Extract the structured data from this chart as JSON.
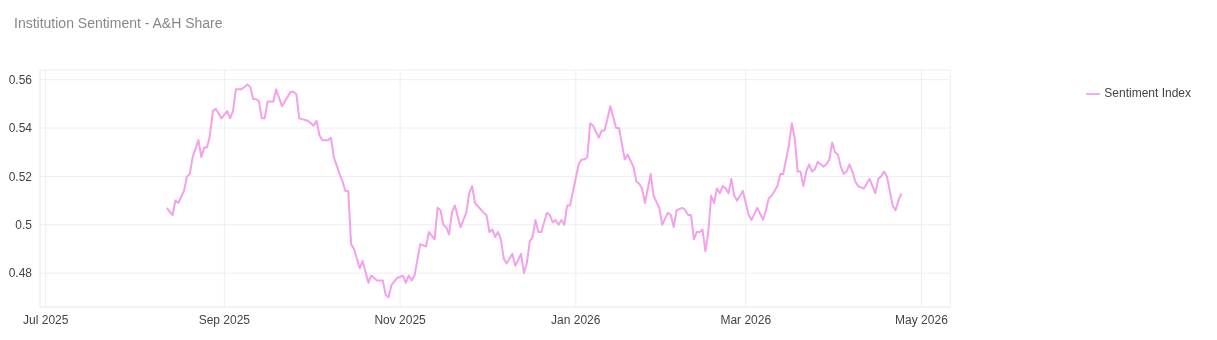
{
  "chart_data": {
    "type": "line",
    "title": "Institution Sentiment - A&H Share",
    "x": [
      "2025-08-12",
      "2025-08-14",
      "2025-08-15",
      "2025-08-16",
      "2025-08-18",
      "2025-08-19",
      "2025-08-20",
      "2025-08-21",
      "2025-08-23",
      "2025-08-24",
      "2025-08-25",
      "2025-08-26",
      "2025-08-27",
      "2025-08-28",
      "2025-08-29",
      "2025-08-31",
      "2025-09-02",
      "2025-09-03",
      "2025-09-04",
      "2025-09-05",
      "2025-09-07",
      "2025-09-09",
      "2025-09-10",
      "2025-09-11",
      "2025-09-12",
      "2025-09-13",
      "2025-09-14",
      "2025-09-15",
      "2025-09-16",
      "2025-09-18",
      "2025-09-19",
      "2025-09-21",
      "2025-09-22",
      "2025-09-24",
      "2025-09-25",
      "2025-09-26",
      "2025-09-27",
      "2025-09-30",
      "2025-10-02",
      "2025-10-03",
      "2025-10-04",
      "2025-10-05",
      "2025-10-07",
      "2025-10-08",
      "2025-10-09",
      "2025-10-11",
      "2025-10-12",
      "2025-10-13",
      "2025-10-14",
      "2025-10-15",
      "2025-10-16",
      "2025-10-18",
      "2025-10-19",
      "2025-10-21",
      "2025-10-22",
      "2025-10-24",
      "2025-10-26",
      "2025-10-27",
      "2025-10-28",
      "2025-10-29",
      "2025-10-31",
      "2025-11-02",
      "2025-11-03",
      "2025-11-04",
      "2025-11-05",
      "2025-11-06",
      "2025-11-08",
      "2025-11-10",
      "2025-11-11",
      "2025-11-13",
      "2025-11-14",
      "2025-11-15",
      "2025-11-16",
      "2025-11-17",
      "2025-11-18",
      "2025-11-19",
      "2025-11-20",
      "2025-11-22",
      "2025-11-24",
      "2025-11-25",
      "2025-11-26",
      "2025-11-27",
      "2025-11-30",
      "2025-12-01",
      "2025-12-02",
      "2025-12-03",
      "2025-12-04",
      "2025-12-05",
      "2025-12-06",
      "2025-12-07",
      "2025-12-08",
      "2025-12-10",
      "2025-12-11",
      "2025-12-13",
      "2025-12-14",
      "2025-12-15",
      "2025-12-16",
      "2025-12-17",
      "2025-12-18",
      "2025-12-19",
      "2025-12-20",
      "2025-12-22",
      "2025-12-23",
      "2025-12-24",
      "2025-12-25",
      "2025-12-26",
      "2025-12-27",
      "2025-12-28",
      "2025-12-29",
      "2025-12-30",
      "2026-01-02",
      "2026-01-03",
      "2026-01-04",
      "2026-01-05",
      "2026-01-06",
      "2026-01-07",
      "2026-01-09",
      "2026-01-10",
      "2026-01-11",
      "2026-01-13",
      "2026-01-15",
      "2026-01-16",
      "2026-01-18",
      "2026-01-19",
      "2026-01-21",
      "2026-01-22",
      "2026-01-23",
      "2026-01-24",
      "2026-01-25",
      "2026-01-27",
      "2026-01-28",
      "2026-01-30",
      "2026-01-31",
      "2026-02-02",
      "2026-02-03",
      "2026-02-04",
      "2026-02-05",
      "2026-02-07",
      "2026-02-08",
      "2026-02-09",
      "2026-02-10",
      "2026-02-11",
      "2026-02-12",
      "2026-02-13",
      "2026-02-14",
      "2026-02-15",
      "2026-02-16",
      "2026-02-17",
      "2026-02-18",
      "2026-02-19",
      "2026-02-20",
      "2026-02-21",
      "2026-02-22",
      "2026-02-23",
      "2026-02-24",
      "2026-02-25",
      "2026-02-26",
      "2026-02-28",
      "2026-03-01",
      "2026-03-02",
      "2026-03-03",
      "2026-03-05",
      "2026-03-07",
      "2026-03-08",
      "2026-03-09",
      "2026-03-10",
      "2026-03-12",
      "2026-03-13",
      "2026-03-14",
      "2026-03-16",
      "2026-03-17",
      "2026-03-18",
      "2026-03-19",
      "2026-03-20",
      "2026-03-21",
      "2026-03-22",
      "2026-03-23",
      "2026-03-24",
      "2026-03-25",
      "2026-03-26",
      "2026-03-27",
      "2026-03-28",
      "2026-03-29",
      "2026-03-30",
      "2026-03-31",
      "2026-04-01",
      "2026-04-02",
      "2026-04-03",
      "2026-04-04",
      "2026-04-05",
      "2026-04-06",
      "2026-04-07",
      "2026-04-08",
      "2026-04-09",
      "2026-04-11",
      "2026-04-13",
      "2026-04-15",
      "2026-04-16",
      "2026-04-17",
      "2026-04-18",
      "2026-04-19",
      "2026-04-21",
      "2026-04-22",
      "2026-04-23",
      "2026-04-24"
    ],
    "series": [
      {
        "name": "Sentiment Index",
        "color": "#f4a0ea",
        "values": [
          0.507,
          0.504,
          0.51,
          0.509,
          0.514,
          0.52,
          0.521,
          0.528,
          0.535,
          0.528,
          0.532,
          0.532,
          0.537,
          0.547,
          0.548,
          0.544,
          0.547,
          0.544,
          0.547,
          0.556,
          0.556,
          0.558,
          0.557,
          0.552,
          0.552,
          0.551,
          0.544,
          0.544,
          0.551,
          0.551,
          0.556,
          0.549,
          0.551,
          0.555,
          0.555,
          0.554,
          0.544,
          0.543,
          0.541,
          0.543,
          0.537,
          0.535,
          0.535,
          0.536,
          0.528,
          0.521,
          0.518,
          0.514,
          0.514,
          0.492,
          0.49,
          0.482,
          0.485,
          0.476,
          0.479,
          0.477,
          0.477,
          0.471,
          0.47,
          0.475,
          0.478,
          0.479,
          0.476,
          0.479,
          0.477,
          0.479,
          0.492,
          0.491,
          0.497,
          0.494,
          0.507,
          0.506,
          0.5,
          0.499,
          0.496,
          0.505,
          0.508,
          0.499,
          0.505,
          0.513,
          0.516,
          0.509,
          0.505,
          0.504,
          0.497,
          0.498,
          0.495,
          0.497,
          0.494,
          0.486,
          0.484,
          0.488,
          0.483,
          0.488,
          0.48,
          0.484,
          0.493,
          0.495,
          0.502,
          0.497,
          0.497,
          0.505,
          0.504,
          0.501,
          0.502,
          0.5,
          0.502,
          0.5,
          0.508,
          0.508,
          0.525,
          0.527,
          0.527,
          0.528,
          0.542,
          0.541,
          0.536,
          0.539,
          0.539,
          0.549,
          0.54,
          0.54,
          0.527,
          0.529,
          0.524,
          0.518,
          0.517,
          0.515,
          0.509,
          0.521,
          0.512,
          0.507,
          0.5,
          0.505,
          0.504,
          0.499,
          0.506,
          0.507,
          0.506,
          0.504,
          0.504,
          0.494,
          0.497,
          0.497,
          0.498,
          0.489,
          0.497,
          0.512,
          0.509,
          0.515,
          0.513,
          0.516,
          0.515,
          0.513,
          0.519,
          0.512,
          0.51,
          0.514,
          0.509,
          0.504,
          0.502,
          0.507,
          0.502,
          0.506,
          0.511,
          0.512,
          0.516,
          0.521,
          0.521,
          0.533,
          0.542,
          0.536,
          0.522,
          0.522,
          0.516,
          0.522,
          0.525,
          0.522,
          0.523,
          0.526,
          0.525,
          0.524,
          0.525,
          0.527,
          0.534,
          0.53,
          0.529,
          0.524,
          0.521,
          0.522,
          0.525,
          0.522,
          0.518,
          0.516,
          0.515,
          0.519,
          0.513,
          0.519,
          0.52,
          0.522,
          0.52,
          0.508,
          0.506,
          0.51,
          0.513
        ]
      }
    ],
    "xlim": [
      "2025-06-29",
      "2026-05-11"
    ],
    "xticks": [
      {
        "value": "2025-07-01",
        "label": "Jul 2025"
      },
      {
        "value": "2025-09-01",
        "label": "Sep 2025"
      },
      {
        "value": "2025-11-01",
        "label": "Nov 2025"
      },
      {
        "value": "2026-01-01",
        "label": "Jan 2026"
      },
      {
        "value": "2026-03-01",
        "label": "Mar 2026"
      },
      {
        "value": "2026-05-01",
        "label": "May 2026"
      }
    ],
    "ylim": [
      0.466,
      0.564
    ],
    "yticks": [
      0.48,
      0.5,
      0.52,
      0.54,
      0.56
    ],
    "grid": true,
    "legend": "top right",
    "marker": "none",
    "line_style": "solid"
  }
}
